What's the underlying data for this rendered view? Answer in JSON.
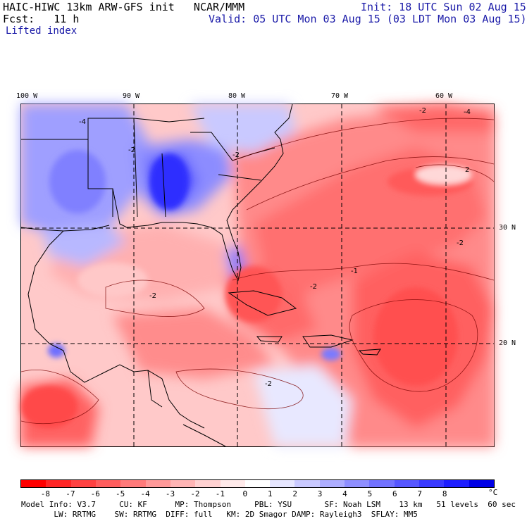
{
  "header": {
    "title_left": "HAIC-HIWC 13km ARW-GFS init   NCAR/MMM",
    "init": "Init: 18 UTC Sun 02 Aug 15",
    "fcst": "Fcst:   11 h",
    "valid": "Valid: 05 UTC Mon 03 Aug 15 (03 LDT Mon 03 Aug 15)",
    "field": "Lifted index"
  },
  "axes": {
    "lon_labels": [
      "100 W",
      "90 W",
      "80 W",
      "70 W",
      "60 W"
    ],
    "lat_labels": [
      "30 N",
      "20 N"
    ]
  },
  "map": {
    "contour_labels": [
      "-4",
      "-2",
      "-2",
      "-2",
      "-2",
      "-2",
      "-2",
      "2",
      "-4",
      "-1",
      "-2"
    ]
  },
  "colorbar": {
    "colors": [
      "#ff0000",
      "#ff2626",
      "#ff4242",
      "#ff5e5e",
      "#ff7a7a",
      "#ff9999",
      "#ffb5b5",
      "#ffd1d1",
      "#ffeaea",
      "#ffffff",
      "#e6e6ff",
      "#c9c9ff",
      "#adadff",
      "#8f8fff",
      "#7272ff",
      "#5656ff",
      "#3939ff",
      "#1e1eff",
      "#0000e6"
    ],
    "labels": [
      "-8",
      "-7",
      "-6",
      "-5",
      "-4",
      "-3",
      "-2",
      "-1",
      "0",
      "1",
      "2",
      "3",
      "4",
      "5",
      "6",
      "7",
      "8"
    ],
    "unit": "°C"
  },
  "footer": {
    "line1": "Model Info: V3.7     CU: KF      MP: Thompson     PBL: YSU       SF: Noah LSM    13 km   51 levels  60 sec",
    "line2": "       LW: RRTMG    SW: RRTMG  DIFF: full   KM: 2D Smagor DAMP: Rayleigh3  SFLAY: MM5"
  }
}
